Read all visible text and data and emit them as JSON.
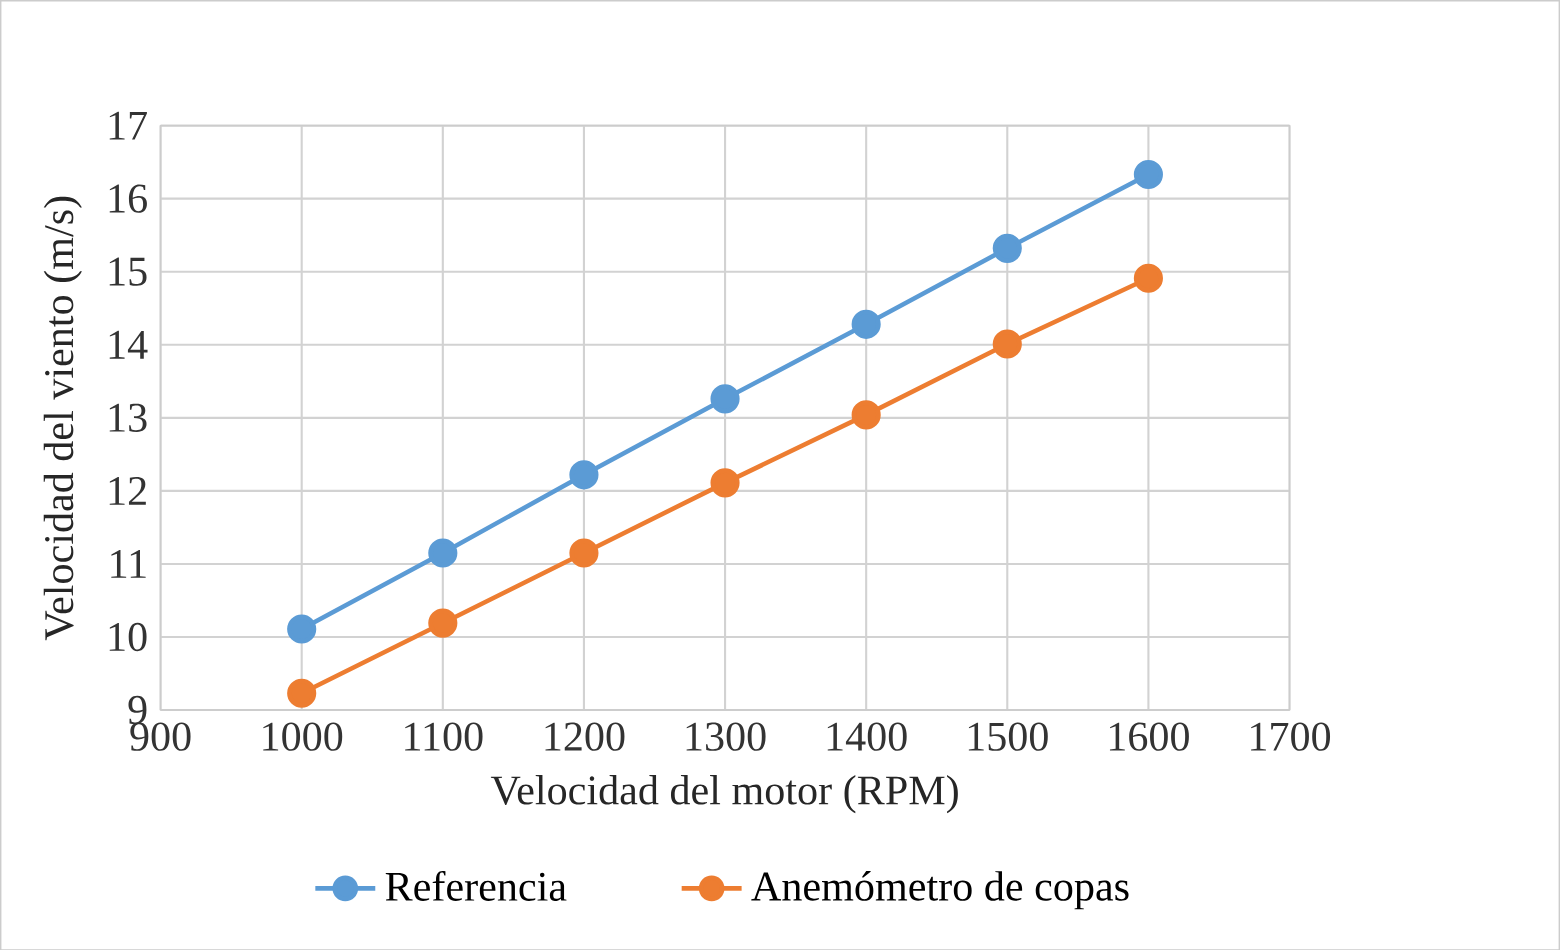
{
  "chart_data": {
    "type": "line",
    "xlabel": "Velocidad del motor (RPM)",
    "ylabel": "Velocidad del viento (m/s)",
    "x": [
      1000,
      1100,
      1200,
      1300,
      1400,
      1500,
      1600
    ],
    "series": [
      {
        "name": "Referencia",
        "color": "#5b9bd5",
        "values": [
          10.11,
          11.15,
          12.22,
          13.26,
          14.28,
          15.32,
          16.33
        ]
      },
      {
        "name": "Anemómetro de copas",
        "color": "#ed7d31",
        "values": [
          9.23,
          10.19,
          11.15,
          12.11,
          13.04,
          14.01,
          14.91
        ]
      }
    ],
    "xlim": [
      900,
      1700
    ],
    "xticks": [
      900,
      1000,
      1100,
      1200,
      1300,
      1400,
      1500,
      1600,
      1700
    ],
    "ylim": [
      9,
      17
    ],
    "yticks": [
      9,
      10,
      11,
      12,
      13,
      14,
      15,
      16,
      17
    ],
    "grid": true,
    "legend": "bottom",
    "marker": "circle",
    "line_style": "solid"
  }
}
